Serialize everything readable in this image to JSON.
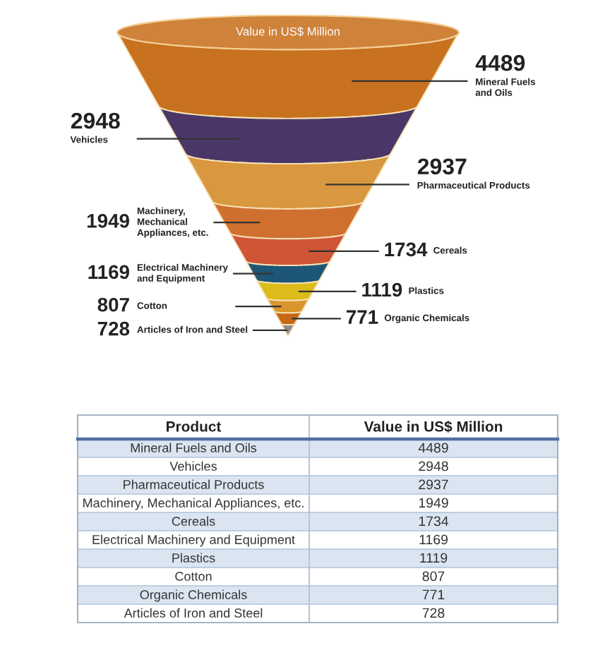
{
  "chart_data": [
    {
      "type": "other",
      "title": "Value in US$ Million",
      "categories": [
        "Mineral Fuels\nand Oils",
        "Vehicles",
        "Pharmaceutical Products",
        "Machinery,\nMechanical\nAppliances, etc.",
        "Cereals",
        "Electrical Machinery\nand Equipment",
        "Plastics",
        "Cotton",
        "Organic Chemicals",
        "Articles of Iron and Steel"
      ],
      "values": [
        4489,
        2948,
        2937,
        1949,
        1734,
        1169,
        1119,
        807,
        771,
        728
      ],
      "colors": [
        "#c8711f",
        "#4a3768",
        "#d9973f",
        "#d0702f",
        "#cf5536",
        "#1d5676",
        "#dcbb1a",
        "#d9962a",
        "#c66a18",
        "#8c8c8c"
      ],
      "data_labels": true
    },
    {
      "type": "other",
      "xlabel": "Product",
      "ylabel": "Value in US$ Million",
      "categories": [
        "Mineral Fuels and Oils",
        "Vehicles",
        "Pharmaceutical Products",
        "Machinery, Mechanical Appliances, etc.",
        "Cereals",
        "Electrical Machinery and Equipment",
        "Plastics",
        "Cotton",
        "Organic Chemicals",
        "Articles of Iron and Steel"
      ],
      "values": [
        4489,
        2948,
        2937,
        1949,
        1734,
        1169,
        1119,
        807,
        771,
        728
      ],
      "colors": [
        "#dbe5f1",
        "#ffffff",
        "#dbe5f1",
        "#ffffff",
        "#dbe5f1",
        "#ffffff",
        "#dbe5f1",
        "#ffffff",
        "#dbe5f1",
        "#ffffff"
      ],
      "data_labels": true
    }
  ]
}
